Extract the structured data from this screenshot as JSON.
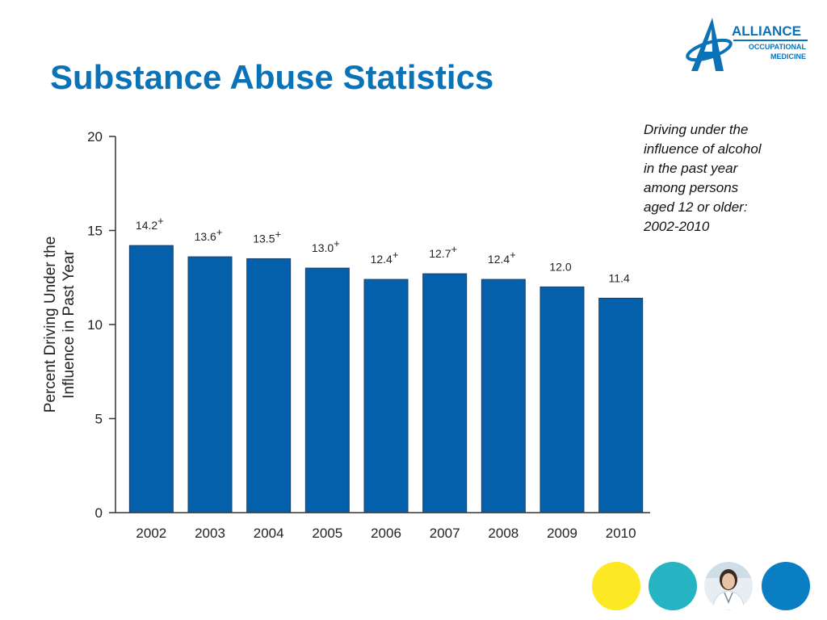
{
  "title": "Substance Abuse Statistics",
  "caption": "Driving under the influence of alcohol in the past year among persons aged 12 or older: 2002-2010",
  "logo": {
    "line1": "ALLIANCE",
    "line2": "OCCUPATIONAL",
    "line3": "MEDICINE",
    "color": "#0a73b8"
  },
  "chart_data": {
    "type": "bar",
    "title": "",
    "xlabel": "",
    "ylabel": [
      "Percent Driving Under the",
      "Influence in Past Year"
    ],
    "categories": [
      "2002",
      "2003",
      "2004",
      "2005",
      "2006",
      "2007",
      "2008",
      "2009",
      "2010"
    ],
    "values": [
      14.2,
      13.6,
      13.5,
      13.0,
      12.4,
      12.7,
      12.4,
      12.0,
      11.4
    ],
    "labels": [
      "14.2",
      "13.6",
      "13.5",
      "13.0",
      "12.4",
      "12.7",
      "12.4",
      "12.0",
      "11.4"
    ],
    "significance_marker": "+",
    "significant": [
      true,
      true,
      true,
      true,
      true,
      true,
      true,
      false,
      false
    ],
    "ylim": [
      0,
      20
    ],
    "yticks": [
      0,
      5,
      10,
      15,
      20
    ],
    "grid": false,
    "bar_color": "#0560ab"
  },
  "decor": {
    "circle_colors": [
      "#fce823",
      "#26b3c2",
      "#0a7ec2"
    ],
    "photo_icon": "doctor-photo-icon"
  }
}
